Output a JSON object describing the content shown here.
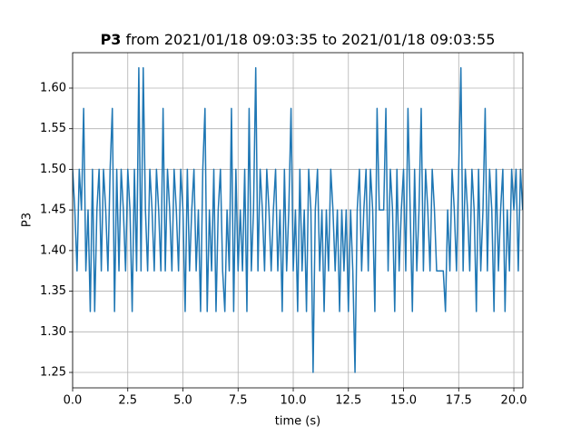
{
  "chart_data": {
    "type": "line",
    "title_bold": "P3",
    "title": "from 2021/01/18 09:03:35 to 2021/01/18 09:03:55",
    "x_label": "time (s)",
    "y_label": "P3",
    "color": "#1f77b4",
    "grid": true,
    "xlim": [
      0,
      20.41
    ],
    "ylim": [
      1.231,
      1.6436
    ],
    "xticks": [
      {
        "value": 0,
        "label": "0.0"
      },
      {
        "value": 2.5,
        "label": "2.5"
      },
      {
        "value": 5,
        "label": "5.0"
      },
      {
        "value": 7.5,
        "label": "7.5"
      },
      {
        "value": 10,
        "label": "10.0"
      },
      {
        "value": 12.5,
        "label": "12.5"
      },
      {
        "value": 15,
        "label": "15.0"
      },
      {
        "value": 17.5,
        "label": "17.5"
      },
      {
        "value": 20,
        "label": "20.0"
      }
    ],
    "yticks": [
      1.25,
      {
        "value": 1.3,
        "label": "1.30"
      },
      1.35,
      {
        "value": 1.4,
        "label": "1.40"
      },
      1.45,
      {
        "value": 1.5,
        "label": "1.50"
      },
      1.55,
      {
        "value": 1.6,
        "label": "1.60"
      }
    ],
    "x": [
      0,
      0.1,
      0.2,
      0.3,
      0.4,
      0.5,
      0.6,
      0.7,
      0.8,
      0.9,
      1,
      1.1,
      1.2,
      1.3,
      1.4,
      1.5,
      1.6,
      1.7,
      1.8,
      1.9,
      2,
      2.1,
      2.2,
      2.3,
      2.4,
      2.5,
      2.6,
      2.7,
      2.8,
      2.9,
      3,
      3.1,
      3.2,
      3.3,
      3.4,
      3.5,
      3.6,
      3.7,
      3.8,
      3.9,
      4,
      4.1,
      4.2,
      4.3,
      4.4,
      4.5,
      4.6,
      4.7,
      4.8,
      4.9,
      5,
      5.1,
      5.2,
      5.3,
      5.4,
      5.5,
      5.6,
      5.7,
      5.8,
      5.9,
      6,
      6.1,
      6.2,
      6.3,
      6.4,
      6.5,
      6.6,
      6.7,
      6.8,
      6.9,
      7,
      7.1,
      7.2,
      7.3,
      7.4,
      7.5,
      7.6,
      7.7,
      7.8,
      7.9,
      8,
      8.1,
      8.2,
      8.3,
      8.4,
      8.5,
      8.6,
      8.7,
      8.8,
      8.9,
      9,
      9.1,
      9.2,
      9.3,
      9.4,
      9.5,
      9.6,
      9.7,
      9.8,
      9.9,
      10,
      10.1,
      10.2,
      10.3,
      10.4,
      10.5,
      10.6,
      10.7,
      10.8,
      10.9,
      11,
      11.1,
      11.2,
      11.3,
      11.4,
      11.5,
      11.6,
      11.7,
      11.8,
      11.9,
      12,
      12.1,
      12.2,
      12.3,
      12.4,
      12.5,
      12.6,
      12.7,
      12.8,
      12.9,
      13,
      13.1,
      13.2,
      13.3,
      13.4,
      13.5,
      13.6,
      13.7,
      13.8,
      13.9,
      14,
      14.1,
      14.2,
      14.3,
      14.4,
      14.5,
      14.6,
      14.7,
      14.8,
      14.9,
      15,
      15.1,
      15.2,
      15.3,
      15.4,
      15.5,
      15.6,
      15.7,
      15.8,
      15.9,
      16,
      16.1,
      16.2,
      16.3,
      16.4,
      16.5,
      16.6,
      16.7,
      16.8,
      16.9,
      17,
      17.1,
      17.2,
      17.3,
      17.4,
      17.5,
      17.6,
      17.7,
      17.8,
      17.9,
      18,
      18.1,
      18.2,
      18.3,
      18.4,
      18.5,
      18.6,
      18.7,
      18.8,
      18.9,
      19,
      19.1,
      19.2,
      19.3,
      19.4,
      19.5,
      19.6,
      19.7,
      19.8,
      19.9,
      20,
      20.1,
      20.2,
      20.3,
      20.4
    ],
    "values": [
      1.5,
      1.45,
      1.375,
      1.5,
      1.45,
      1.575,
      1.375,
      1.45,
      1.325,
      1.5,
      1.325,
      1.45,
      1.5,
      1.375,
      1.5,
      1.45,
      1.375,
      1.5,
      1.575,
      1.325,
      1.5,
      1.375,
      1.5,
      1.45,
      1.375,
      1.5,
      1.45,
      1.325,
      1.5,
      1.375,
      1.625,
      1.375,
      1.625,
      1.45,
      1.375,
      1.5,
      1.45,
      1.375,
      1.5,
      1.45,
      1.375,
      1.575,
      1.375,
      1.5,
      1.45,
      1.375,
      1.5,
      1.45,
      1.375,
      1.5,
      1.45,
      1.325,
      1.5,
      1.375,
      1.45,
      1.5,
      1.375,
      1.45,
      1.325,
      1.5,
      1.575,
      1.325,
      1.45,
      1.375,
      1.5,
      1.325,
      1.45,
      1.5,
      1.375,
      1.325,
      1.45,
      1.375,
      1.575,
      1.325,
      1.5,
      1.375,
      1.45,
      1.375,
      1.5,
      1.325,
      1.575,
      1.375,
      1.45,
      1.625,
      1.375,
      1.5,
      1.45,
      1.375,
      1.5,
      1.45,
      1.375,
      1.45,
      1.5,
      1.375,
      1.45,
      1.325,
      1.5,
      1.375,
      1.45,
      1.575,
      1.375,
      1.45,
      1.325,
      1.5,
      1.375,
      1.45,
      1.325,
      1.5,
      1.45,
      1.25,
      1.45,
      1.5,
      1.375,
      1.45,
      1.325,
      1.45,
      1.375,
      1.5,
      1.45,
      1.375,
      1.45,
      1.325,
      1.45,
      1.375,
      1.45,
      1.325,
      1.45,
      1.375,
      1.25,
      1.45,
      1.5,
      1.375,
      1.45,
      1.5,
      1.375,
      1.5,
      1.45,
      1.325,
      1.575,
      1.45,
      1.45,
      1.45,
      1.575,
      1.375,
      1.5,
      1.45,
      1.325,
      1.5,
      1.375,
      1.45,
      1.5,
      1.375,
      1.575,
      1.45,
      1.325,
      1.5,
      1.375,
      1.45,
      1.575,
      1.375,
      1.5,
      1.45,
      1.375,
      1.5,
      1.45,
      1.375,
      1.375,
      1.375,
      1.375,
      1.325,
      1.45,
      1.375,
      1.5,
      1.45,
      1.375,
      1.5,
      1.625,
      1.375,
      1.5,
      1.45,
      1.375,
      1.5,
      1.45,
      1.325,
      1.5,
      1.375,
      1.45,
      1.575,
      1.375,
      1.5,
      1.45,
      1.325,
      1.5,
      1.375,
      1.45,
      1.5,
      1.325,
      1.45,
      1.375,
      1.5,
      1.45,
      1.5,
      1.375,
      1.5,
      1.45
    ]
  }
}
